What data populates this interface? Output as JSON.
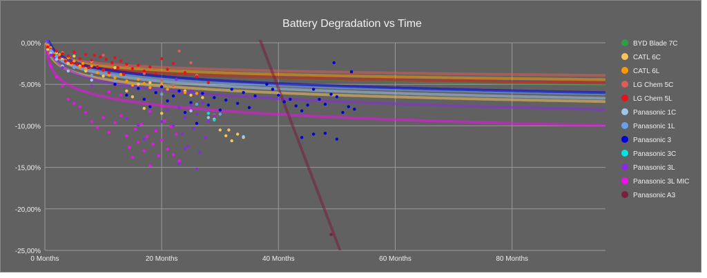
{
  "chart_data": {
    "type": "scatter",
    "title": "Battery Degradation vs Time",
    "xlabel": "",
    "ylabel": "",
    "xlim": [
      0,
      96
    ],
    "ylim": [
      -25,
      0
    ],
    "x_ticks": [
      0,
      20,
      40,
      60,
      80
    ],
    "x_tick_labels": [
      "0 Months",
      "20 Months",
      "40 Months",
      "60 Months",
      "80 Months"
    ],
    "y_ticks": [
      0,
      -5,
      -10,
      -15,
      -20,
      -25
    ],
    "y_tick_labels": [
      "0,00%",
      "-5,00%",
      "-10,00%",
      "-15,00%",
      "-20,00%",
      "-25,00%"
    ],
    "grid": true,
    "legend_position": "right",
    "series": [
      {
        "name": "BYD Blade 7C",
        "color": "#2e9e48",
        "trend": "log",
        "trend_a": -0.95,
        "trend_b": -0.7,
        "points": [
          [
            0.5,
            -0.5
          ],
          [
            1,
            -1.0
          ],
          [
            1.5,
            -1.5
          ],
          [
            2,
            -1.3
          ]
        ]
      },
      {
        "name": "CATL 6C",
        "color": "#f5c55c",
        "trend": "log",
        "trend_a": -1.2,
        "trend_b": -1.6,
        "points": [
          [
            0.5,
            -0.8
          ],
          [
            1,
            -0.9
          ],
          [
            2,
            -1.2
          ],
          [
            3,
            -2.0
          ],
          [
            4,
            -2.5
          ],
          [
            5,
            -1.6
          ],
          [
            6,
            -2.8
          ],
          [
            7,
            -3.4
          ],
          [
            8,
            -2.2
          ],
          [
            10,
            -4.0
          ],
          [
            12,
            -3.0
          ],
          [
            14,
            -5.8
          ],
          [
            15,
            -6.5
          ],
          [
            16,
            -5.0
          ],
          [
            17,
            -7.9
          ],
          [
            18,
            -4.8
          ],
          [
            20,
            -8.5
          ],
          [
            22,
            -5.3
          ],
          [
            24,
            -5.8
          ],
          [
            25,
            -6.3
          ],
          [
            27,
            -6.6
          ],
          [
            29,
            -9.2
          ],
          [
            30,
            -10.5
          ],
          [
            31,
            -11.2
          ],
          [
            31.5,
            -10.5
          ],
          [
            32,
            -11.8
          ],
          [
            33,
            -11.0
          ],
          [
            34,
            -11.4
          ]
        ]
      },
      {
        "name": "CATL 6L",
        "color": "#ff9900",
        "trend": "log",
        "trend_a": -0.72,
        "trend_b": -1.15,
        "points": [
          [
            0.5,
            -0.3
          ],
          [
            1,
            -0.6
          ],
          [
            2,
            -1.0
          ],
          [
            2.5,
            -1.4
          ],
          [
            3,
            -1.2
          ],
          [
            3.5,
            -2.1
          ],
          [
            4,
            -1.8
          ],
          [
            4.5,
            -2.6
          ],
          [
            5,
            -2.2
          ],
          [
            6,
            -2.9
          ],
          [
            6.5,
            -2.5
          ],
          [
            7,
            -3.1
          ],
          [
            8,
            -2.8
          ],
          [
            9,
            -3.6
          ],
          [
            10,
            -3.3
          ],
          [
            11,
            -3.9
          ],
          [
            12,
            -4.2
          ],
          [
            13,
            -3.8
          ],
          [
            14,
            -4.6
          ],
          [
            15,
            -5.1
          ],
          [
            16,
            -4.4
          ],
          [
            17,
            -4.9
          ],
          [
            18,
            -5.4
          ],
          [
            20,
            -5.0
          ],
          [
            21,
            -5.6
          ],
          [
            22,
            -5.3
          ],
          [
            24,
            -6.0
          ],
          [
            26,
            -6.1
          ]
        ]
      },
      {
        "name": "LG Chem 5C",
        "color": "#d9605a",
        "trend": "log",
        "trend_a": -0.62,
        "trend_b": -1.1,
        "points": [
          [
            10,
            -1.5
          ],
          [
            14,
            -2.8
          ],
          [
            17,
            -3.7
          ],
          [
            20,
            -4.5
          ],
          [
            22,
            -5.2
          ],
          [
            23,
            -1.0
          ],
          [
            25,
            -2.4
          ],
          [
            26,
            -3.9
          ],
          [
            29,
            -8.7
          ]
        ]
      },
      {
        "name": "LG Chem 5L",
        "color": "#e8111a",
        "trend": "log",
        "trend_a": -0.78,
        "trend_b": -1.3,
        "points": [
          [
            0.5,
            -0.5
          ],
          [
            1,
            -0.8
          ],
          [
            1.5,
            -1.5
          ],
          [
            2,
            -1.0
          ],
          [
            2.5,
            -1.8
          ],
          [
            3,
            -1.3
          ],
          [
            3.5,
            -2.2
          ],
          [
            4,
            -1.6
          ],
          [
            4.5,
            -2.4
          ],
          [
            5,
            -1.1
          ],
          [
            5.5,
            -2.6
          ],
          [
            6,
            -1.9
          ],
          [
            6.5,
            -2.8
          ],
          [
            7,
            -1.4
          ],
          [
            7.5,
            -3.0
          ],
          [
            8,
            -2.1
          ],
          [
            8.5,
            -1.5
          ],
          [
            9,
            -2.9
          ],
          [
            9.5,
            -1.7
          ],
          [
            10,
            -3.3
          ],
          [
            10.5,
            -2.0
          ],
          [
            11,
            -3.6
          ],
          [
            11.5,
            -2.4
          ],
          [
            12,
            -1.8
          ],
          [
            12.5,
            -3.0
          ],
          [
            13,
            -2.2
          ],
          [
            13.5,
            -3.8
          ],
          [
            14,
            -2.6
          ],
          [
            15,
            -3.1
          ],
          [
            16,
            -2.7
          ],
          [
            17,
            -3.4
          ],
          [
            18,
            -2.9
          ],
          [
            19,
            -3.7
          ],
          [
            20,
            -1.9
          ],
          [
            21,
            -3.2
          ],
          [
            22,
            -2.5
          ],
          [
            24,
            -3.6
          ],
          [
            26,
            -4.1
          ],
          [
            28,
            -4.8
          ]
        ]
      },
      {
        "name": "Panasonic 1C",
        "color": "#9fc5e8",
        "trend": "log",
        "trend_a": -1.3,
        "trend_b": -0.75,
        "points": [
          [
            1,
            -1.2
          ],
          [
            2,
            -2.0
          ],
          [
            3,
            -2.8
          ],
          [
            4,
            -3.4
          ],
          [
            8,
            -4.5
          ],
          [
            25,
            -8.2
          ],
          [
            28,
            -9.0
          ],
          [
            34,
            -11.3
          ],
          [
            40,
            -6.2
          ]
        ]
      },
      {
        "name": "Panasonic 1L",
        "color": "#6d9eeb",
        "trend": "log",
        "trend_a": -1.15,
        "trend_b": -0.9,
        "points": [
          [
            1,
            -0.9
          ],
          [
            2,
            -1.6
          ],
          [
            3,
            -2.2
          ],
          [
            5,
            -3.0
          ],
          [
            8,
            -3.9
          ],
          [
            12,
            -4.6
          ],
          [
            20,
            -6.2
          ],
          [
            26,
            -7.4
          ],
          [
            30,
            -8.6
          ]
        ]
      },
      {
        "name": "Panasonic 3",
        "color": "#0000d8",
        "trend": "log",
        "trend_a": -1.25,
        "trend_b": -0.3,
        "points": [
          [
            12,
            -5.0
          ],
          [
            14,
            -6.3
          ],
          [
            16,
            -5.5
          ],
          [
            17,
            -6.8
          ],
          [
            18,
            -7.7
          ],
          [
            19,
            -6.0
          ],
          [
            20,
            -5.3
          ],
          [
            21,
            -7.0
          ],
          [
            22,
            -6.4
          ],
          [
            23,
            -5.8
          ],
          [
            24,
            -8.4
          ],
          [
            25,
            -7.2
          ],
          [
            26,
            -9.7
          ],
          [
            27,
            -6.1
          ],
          [
            28,
            -7.5
          ],
          [
            29,
            -6.6
          ],
          [
            30,
            -8.1
          ],
          [
            31,
            -6.9
          ],
          [
            32,
            -5.6
          ],
          [
            33,
            -7.3
          ],
          [
            34,
            -6.0
          ],
          [
            35,
            -7.8
          ],
          [
            36,
            -6.4
          ],
          [
            38,
            -5.0
          ],
          [
            39,
            -5.6
          ],
          [
            40,
            -6.3
          ],
          [
            41,
            -7.1
          ],
          [
            42,
            -6.8
          ],
          [
            43,
            -7.6
          ],
          [
            44,
            -8.2
          ],
          [
            45,
            -7.5
          ],
          [
            46,
            -5.6
          ],
          [
            47,
            -6.8
          ],
          [
            48,
            -7.4
          ],
          [
            49,
            -6.2
          ],
          [
            49.5,
            -2.4
          ],
          [
            50,
            -6.5
          ],
          [
            51,
            -8.4
          ],
          [
            52,
            -7.7
          ],
          [
            52.5,
            -3.5
          ],
          [
            53,
            -8.0
          ],
          [
            44,
            -11.4
          ],
          [
            46,
            -11.0
          ],
          [
            48,
            -10.9
          ],
          [
            50,
            -11.6
          ]
        ]
      },
      {
        "name": "Panasonic 3C",
        "color": "#00e5e5",
        "trend": "none",
        "points": [
          [
            28,
            -8.5
          ],
          [
            29,
            -9.3
          ]
        ]
      },
      {
        "name": "Panasonic 3L",
        "color": "#8a2be2",
        "trend": "log",
        "trend_a": -1.5,
        "trend_b": -1.2,
        "points": [
          [
            1,
            -1.5
          ],
          [
            3,
            -3.0
          ],
          [
            8,
            -5.2
          ],
          [
            14,
            -9.1
          ],
          [
            16,
            -9.9
          ],
          [
            17,
            -11.6
          ],
          [
            18,
            -8.4
          ],
          [
            19,
            -10.5
          ],
          [
            20,
            -9.5
          ],
          [
            21,
            -8.1
          ],
          [
            22,
            -10.0
          ],
          [
            22.5,
            -4.4
          ],
          [
            23,
            -7.8
          ],
          [
            23.5,
            -11.0
          ],
          [
            24,
            -9.0
          ],
          [
            24.5,
            -12.5
          ],
          [
            25,
            -7.5
          ],
          [
            25.5,
            -10.3
          ],
          [
            26,
            -8.6
          ],
          [
            26.5,
            -13.2
          ],
          [
            27,
            -7.2
          ],
          [
            27.5,
            -11.4
          ],
          [
            28,
            -9.4
          ],
          [
            29,
            -8.8
          ],
          [
            26,
            -15.2
          ],
          [
            24,
            -12.8
          ],
          [
            23,
            -14.6
          ],
          [
            25,
            -5.8
          ]
        ]
      },
      {
        "name": "Panasonic 3L MIC",
        "color": "#ee11ee",
        "trend": "log",
        "trend_a": -1.55,
        "trend_b": -2.9,
        "points": [
          [
            1,
            -2.8
          ],
          [
            2,
            -4.1
          ],
          [
            3,
            -5.2
          ],
          [
            4,
            -6.8
          ],
          [
            5,
            -7.3
          ],
          [
            6,
            -7.7
          ],
          [
            7,
            -8.4
          ],
          [
            8,
            -9.5
          ],
          [
            9,
            -10.2
          ],
          [
            10,
            -9.0
          ],
          [
            11,
            -10.8
          ],
          [
            12,
            -9.6
          ],
          [
            13,
            -8.8
          ],
          [
            14,
            -11.2
          ],
          [
            14.5,
            -12.6
          ],
          [
            15,
            -13.8
          ],
          [
            15.5,
            -10.4
          ],
          [
            16,
            -12.0
          ],
          [
            16.5,
            -9.8
          ],
          [
            17,
            -13.0
          ],
          [
            17.5,
            -11.3
          ],
          [
            18,
            -14.8
          ],
          [
            18.5,
            -12.2
          ],
          [
            19,
            -10.6
          ],
          [
            19.5,
            -13.6
          ],
          [
            20,
            -11.7
          ],
          [
            20.5,
            -9.4
          ],
          [
            21,
            -12.8
          ],
          [
            21.5,
            -10.1
          ],
          [
            22,
            -13.5
          ],
          [
            22.5,
            -11.0
          ],
          [
            23,
            -14.2
          ],
          [
            20,
            -7.6
          ],
          [
            18,
            -8.3
          ],
          [
            13,
            -6.3
          ],
          [
            11,
            -5.9
          ]
        ]
      },
      {
        "name": "Panasonic A3",
        "color": "#7a1f3d",
        "trend": "linear",
        "trend_slope": -1.85,
        "trend_intercept": 68.5,
        "points": [
          [
            49,
            -23.1
          ]
        ]
      }
    ]
  }
}
